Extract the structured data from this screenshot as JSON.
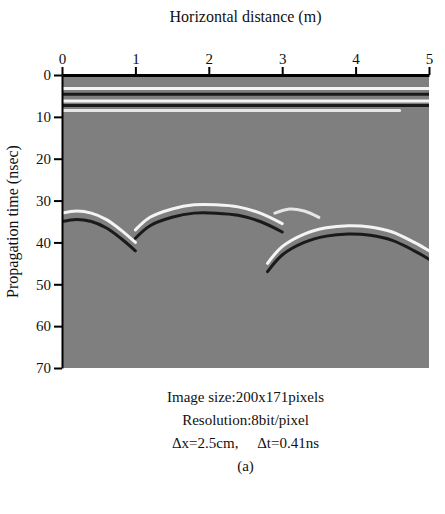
{
  "chart_data": {
    "type": "line",
    "x_label": "Horizontal distance (m)",
    "y_label": "Propagation time (nsec)",
    "xlim": [
      0,
      5
    ],
    "xticks": [
      0,
      1,
      2,
      3,
      4,
      5
    ],
    "ylim": [
      0,
      70
    ],
    "yticks": [
      0,
      10,
      20,
      30,
      40,
      50,
      60,
      70
    ],
    "annotations": [
      "Image size:200x171pixels",
      "Resolution:8bit/pixel",
      "Δx=2.5cm,     Δt=0.41ns",
      "(a)"
    ],
    "series": [
      {
        "color": "#f4f4f4",
        "x": [
          0,
          5
        ],
        "values": [
          3.2,
          3.2
        ]
      },
      {
        "color": "#1a1a1a",
        "x": [
          0,
          5
        ],
        "values": [
          4.6,
          4.6
        ]
      },
      {
        "color": "#f4f4f4",
        "x": [
          0,
          5
        ],
        "values": [
          6.2,
          6.2
        ]
      },
      {
        "color": "#1a1a1a",
        "x": [
          0,
          5
        ],
        "values": [
          7.3,
          7.3
        ]
      },
      {
        "color": "#e6e6e6",
        "x": [
          0,
          4.6
        ],
        "values": [
          8.5,
          8.5
        ]
      },
      {
        "color": "#f4f4f4",
        "x": [
          0,
          0.2,
          0.4,
          0.6,
          0.8,
          1.0
        ],
        "values": [
          33,
          32.5,
          33,
          34.5,
          37,
          40
        ]
      },
      {
        "color": "#1a1a1a",
        "x": [
          0,
          0.2,
          0.4,
          0.6,
          0.8,
          1.0
        ],
        "values": [
          35,
          34.5,
          35,
          36.5,
          39,
          42
        ]
      },
      {
        "color": "#f4f4f4",
        "x": [
          1.0,
          1.2,
          1.5,
          1.8,
          2.1,
          2.4,
          2.7,
          3.0
        ],
        "values": [
          37,
          34,
          32,
          31,
          31,
          31.5,
          33,
          35.5
        ]
      },
      {
        "color": "#1a1a1a",
        "x": [
          1.0,
          1.2,
          1.5,
          1.8,
          2.1,
          2.4,
          2.7,
          3.0
        ],
        "values": [
          39,
          36,
          34,
          33,
          33,
          33.5,
          35,
          37.5
        ]
      },
      {
        "color": "#e6e6e6",
        "x": [
          2.9,
          3.1,
          3.3,
          3.5
        ],
        "values": [
          33,
          32,
          32.5,
          34
        ]
      },
      {
        "color": "#f4f4f4",
        "x": [
          2.8,
          3.0,
          3.3,
          3.6,
          3.9,
          4.2,
          4.5,
          4.8,
          5.0
        ],
        "values": [
          45,
          41,
          38,
          36.5,
          36,
          36.3,
          37.5,
          40,
          42
        ]
      },
      {
        "color": "#1a1a1a",
        "x": [
          2.8,
          3.0,
          3.3,
          3.6,
          3.9,
          4.2,
          4.5,
          4.8,
          5.0
        ],
        "values": [
          47,
          43,
          40,
          38.5,
          38,
          38.3,
          39.5,
          42,
          44
        ]
      }
    ]
  }
}
